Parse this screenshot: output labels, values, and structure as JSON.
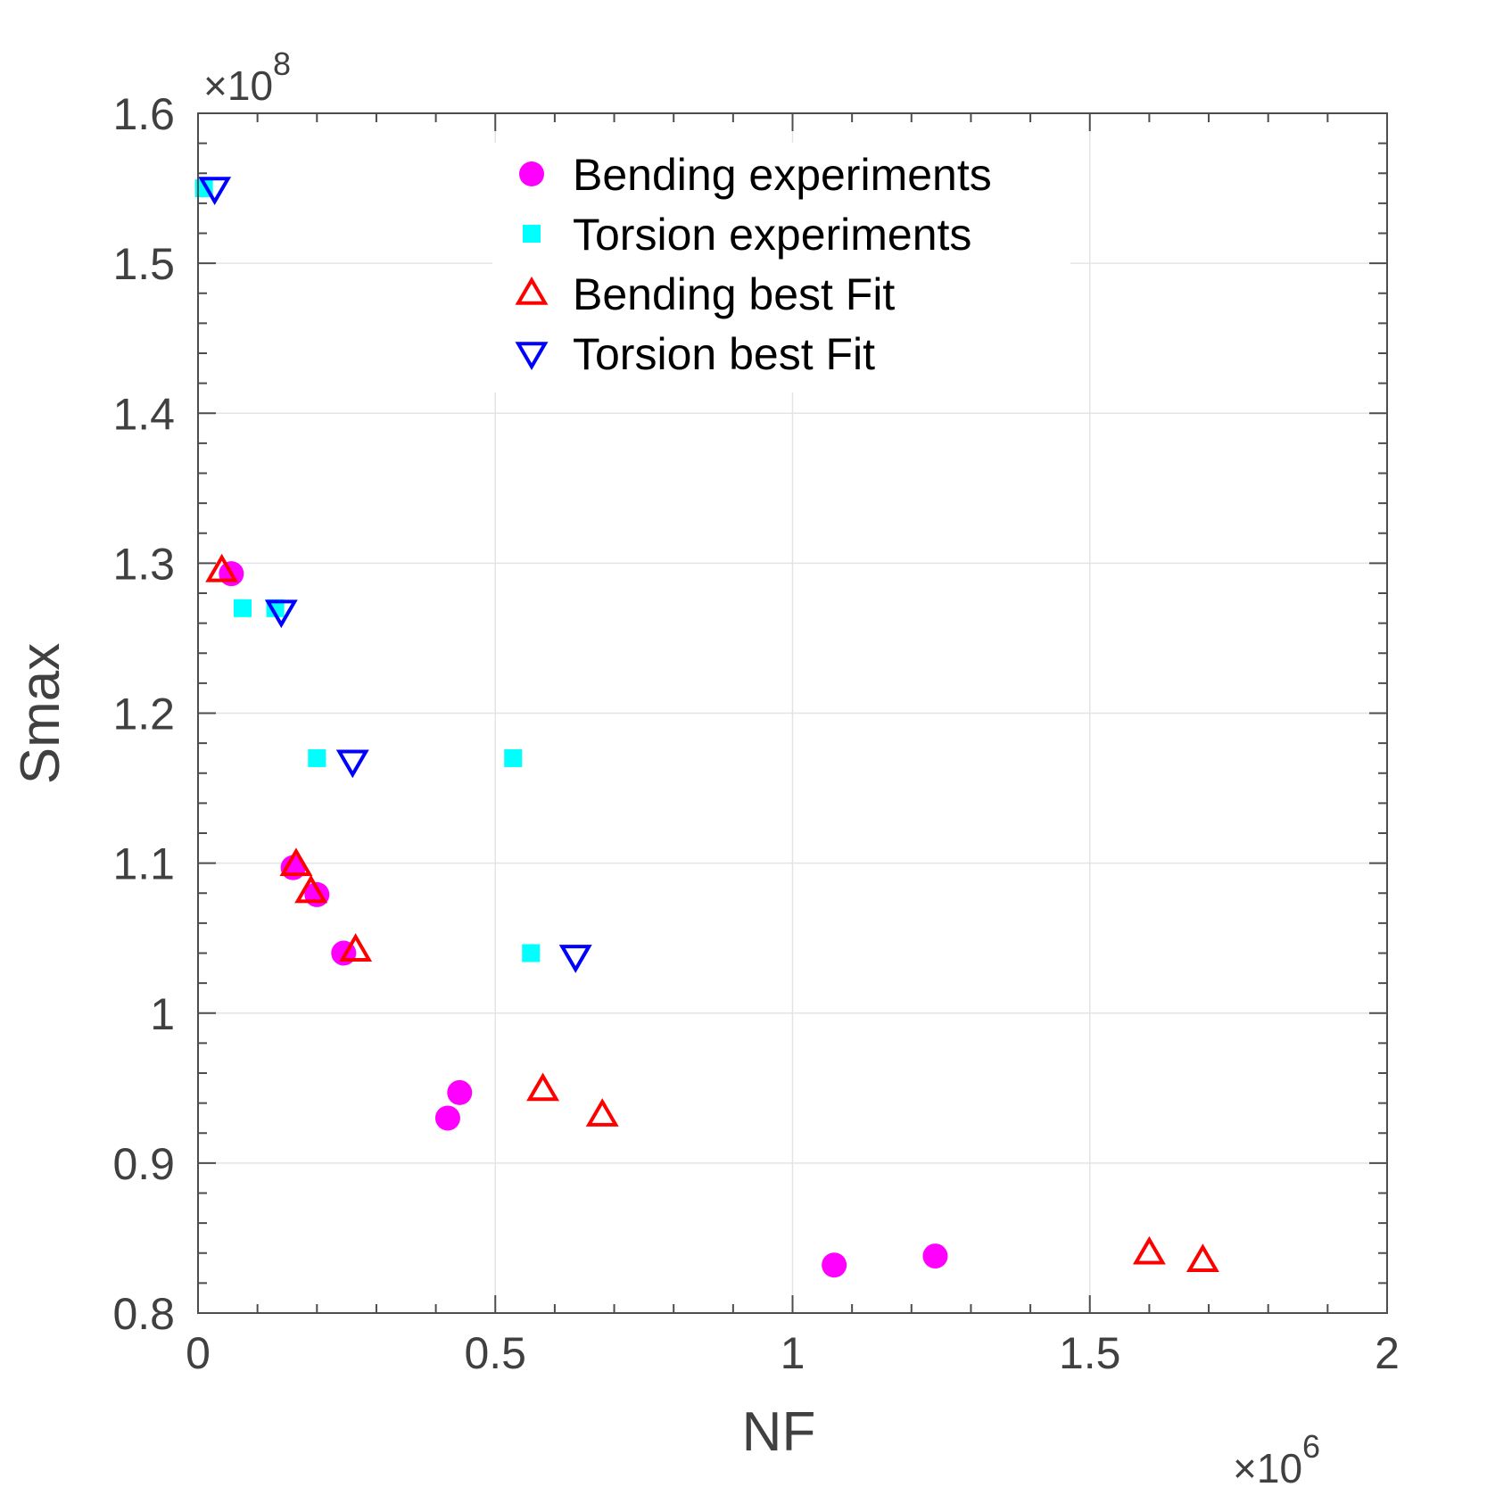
{
  "chart_data": {
    "type": "scatter",
    "xlabel": "NF",
    "ylabel": "Smax",
    "x_multiplier": "×10",
    "x_exponent": "6",
    "y_multiplier": "×10",
    "y_exponent": "8",
    "xlim": [
      0,
      2
    ],
    "ylim": [
      0.8,
      1.6
    ],
    "x_ticks": [
      0,
      0.5,
      1,
      1.5,
      2
    ],
    "x_tick_labels": [
      "0",
      "0.5",
      "1",
      "1.5",
      "2"
    ],
    "y_ticks": [
      0.8,
      0.9,
      1.0,
      1.1,
      1.2,
      1.3,
      1.4,
      1.5,
      1.6
    ],
    "y_tick_labels": [
      "0.8",
      "0.9",
      "1",
      "1.1",
      "1.2",
      "1.3",
      "1.4",
      "1.5",
      "1.6"
    ],
    "grid": true,
    "legend_position": "top-center",
    "series": [
      {
        "name": "Bending experiments",
        "marker": "circle",
        "color": "#ff00ff",
        "points": [
          [
            0.056,
            1.293
          ],
          [
            0.16,
            1.097
          ],
          [
            0.2,
            1.079
          ],
          [
            0.245,
            1.04
          ],
          [
            0.42,
            0.93
          ],
          [
            0.44,
            0.947
          ],
          [
            1.07,
            0.832
          ],
          [
            1.24,
            0.838
          ]
        ]
      },
      {
        "name": "Torsion experiments",
        "marker": "square",
        "color": "#00ffff",
        "points": [
          [
            0.01,
            1.55
          ],
          [
            0.075,
            1.27
          ],
          [
            0.13,
            1.27
          ],
          [
            0.2,
            1.17
          ],
          [
            0.53,
            1.17
          ],
          [
            0.56,
            1.04
          ]
        ]
      },
      {
        "name": "Bending best Fit",
        "marker": "triangle-up",
        "color": "#ff0000",
        "points": [
          [
            0.04,
            1.295
          ],
          [
            0.165,
            1.099
          ],
          [
            0.19,
            1.081
          ],
          [
            0.265,
            1.042
          ],
          [
            0.58,
            0.949
          ],
          [
            0.68,
            0.932
          ],
          [
            1.6,
            0.84
          ],
          [
            1.69,
            0.835
          ]
        ]
      },
      {
        "name": "Torsion best Fit",
        "marker": "triangle-down",
        "color": "#0000ff",
        "points": [
          [
            0.028,
            1.55
          ],
          [
            0.14,
            1.268
          ],
          [
            0.26,
            1.168
          ],
          [
            0.635,
            1.038
          ]
        ]
      }
    ]
  }
}
